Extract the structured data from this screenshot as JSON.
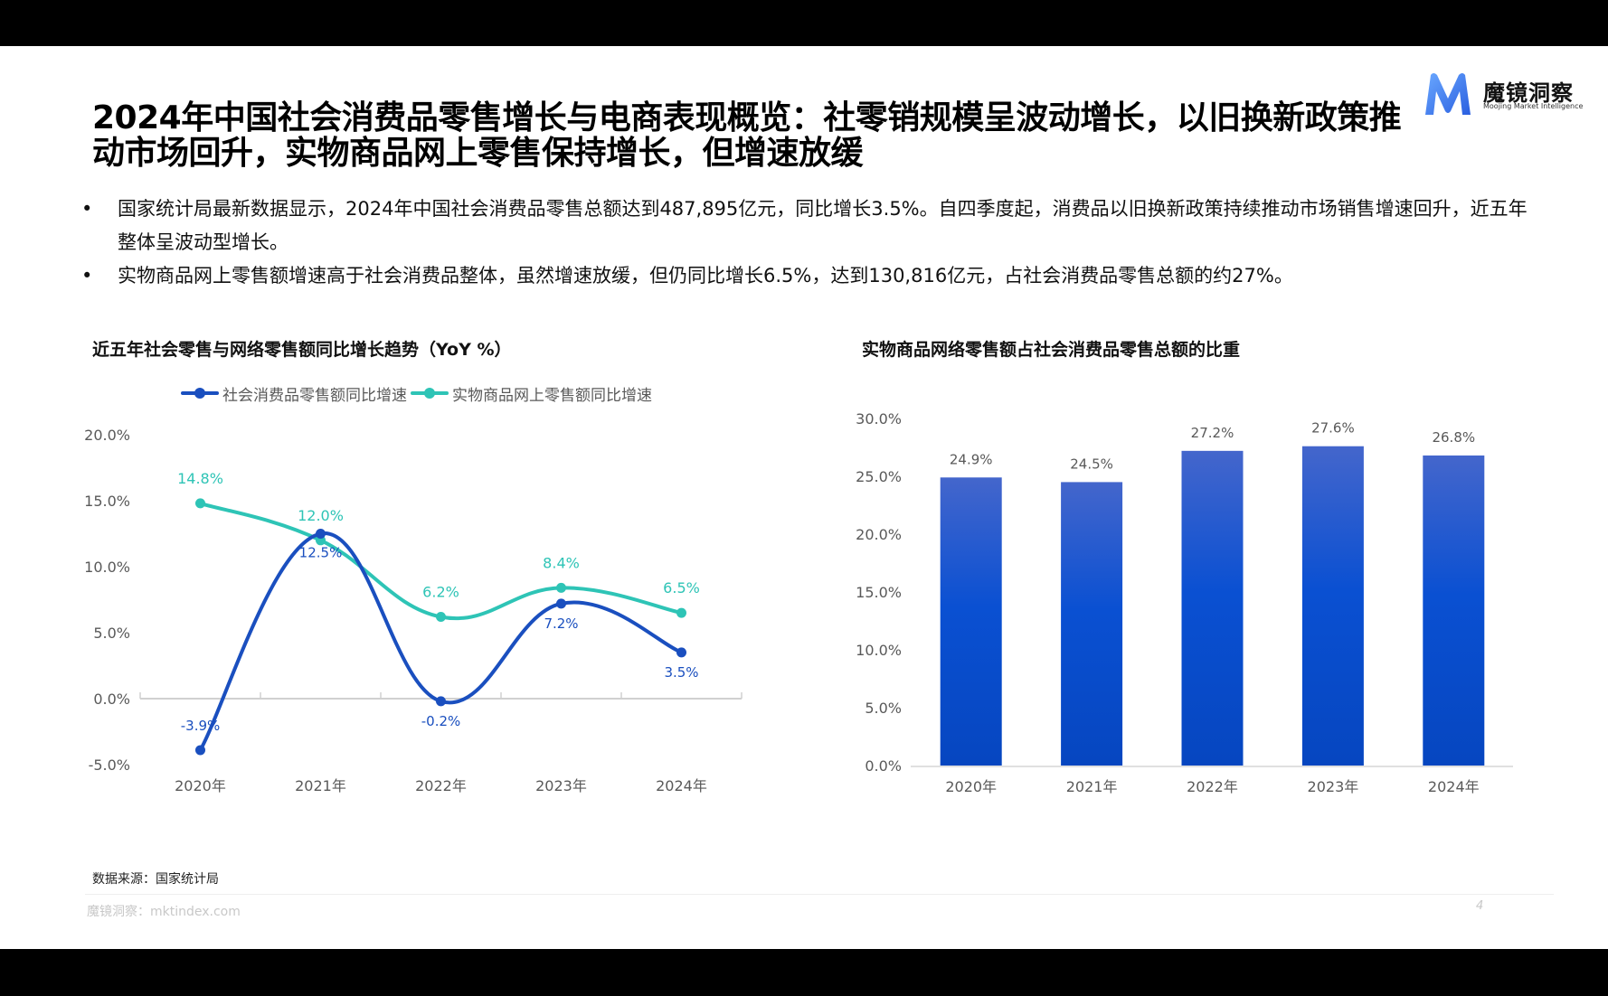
{
  "header": {
    "title": "2024年中国社会消费品零售增长与电商表现概览：社零销规模呈波动增长，以旧换新政策推动市场回升，实物商品网上零售保持增长，但增速放缓",
    "logo": {
      "cn": "魔镜洞察",
      "en": "Moojing Market Intelligence",
      "icon": "m-logo-icon"
    }
  },
  "bullets": [
    "国家统计局最新数据显示，2024年中国社会消费品零售总额达到487,895亿元，同比增长3.5%。自四季度起，消费品以旧换新政策持续推动市场销售增速回升，近五年整体呈波动型增长。",
    "实物商品网上零售额增速高于社会消费品整体，虽然增速放缓，但仍同比增长6.5%，达到130,816亿元，占社会消费品零售总额的约27%。"
  ],
  "bullet_glyph": "•",
  "colors": {
    "social": "#1a4fbf",
    "online": "#2ec4b6",
    "bar_top": "#4466cc",
    "bar_bottom": "#0646c0",
    "axis": "#d0d0d0",
    "tick_label": "#595959"
  },
  "chart_data": [
    {
      "type": "line",
      "title": "近五年社会零售与网络零售额同比增长趋势（YoY %）",
      "categories": [
        "2020年",
        "2021年",
        "2022年",
        "2023年",
        "2024年"
      ],
      "series": [
        {
          "name": "社会消费品零售额同比增速",
          "values": [
            -3.9,
            12.5,
            -0.2,
            7.2,
            3.5
          ],
          "labels": [
            "-3.9%",
            "12.5%",
            "-0.2%",
            "7.2%",
            "3.5%"
          ]
        },
        {
          "name": "实物商品网上零售额同比增速",
          "values": [
            14.8,
            12.0,
            6.2,
            8.4,
            6.5
          ],
          "labels": [
            "14.8%",
            "12.0%",
            "6.2%",
            "8.4%",
            "6.5%"
          ]
        }
      ],
      "yticks": [
        "20.0%",
        "15.0%",
        "10.0%",
        "5.0%",
        "0.0%",
        "-5.0%"
      ],
      "ylim": [
        -5,
        20
      ],
      "xlabel": "",
      "ylabel": "",
      "grid": false,
      "legend_position": "top"
    },
    {
      "type": "bar",
      "title": "实物商品网络零售额占社会消费品零售总额的比重",
      "categories": [
        "2020年",
        "2021年",
        "2022年",
        "2023年",
        "2024年"
      ],
      "values": [
        24.9,
        24.5,
        27.2,
        27.6,
        26.8
      ],
      "labels": [
        "24.9%",
        "24.5%",
        "27.2%",
        "27.6%",
        "26.8%"
      ],
      "yticks": [
        "30.0%",
        "25.0%",
        "20.0%",
        "15.0%",
        "10.0%",
        "5.0%",
        "0.0%"
      ],
      "ylim": [
        0,
        30
      ],
      "xlabel": "",
      "ylabel": "",
      "grid": false
    }
  ],
  "footer": {
    "source": "数据来源：国家统计局",
    "brand": "魔镜洞察：mktindex.com",
    "page": "4"
  }
}
